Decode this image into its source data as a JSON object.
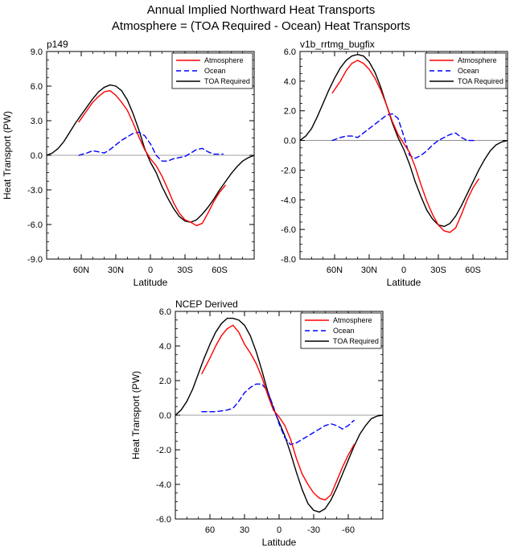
{
  "figure": {
    "title_line1": "Annual Implied Northward Heat Transports",
    "title_line2": "Atmosphere = (TOA Required - Ocean) Heat Transports"
  },
  "legend_labels": [
    "Atmosphere",
    "Ocean",
    "TOA Required"
  ],
  "colors": {
    "atmosphere": "#ff0000",
    "ocean": "#0000ff",
    "toa": "#000000",
    "zero_line": "#808080"
  },
  "chart_data": [
    {
      "type": "line",
      "title": "p149",
      "xlabel": "Latitude",
      "ylabel": "Heat Transport (PW)",
      "xlim": [
        90,
        -90
      ],
      "ylim": [
        -9,
        9
      ],
      "xticks": [
        60,
        30,
        0,
        -30,
        -60
      ],
      "xtick_labels": [
        "60N",
        "30N",
        "0",
        "30S",
        "60S"
      ],
      "yticks": [
        9,
        6,
        3,
        0,
        -3,
        -6,
        -9
      ],
      "ytick_labels": [
        "9.0",
        "6.0",
        "3.0",
        "0.0",
        "-3.0",
        "-6.0",
        "-9.0"
      ],
      "legend_position": "top-right",
      "series": [
        {
          "name": "Atmosphere",
          "style": "solid",
          "color_key": "atmosphere",
          "x": [
            62,
            55,
            50,
            45,
            40,
            35,
            30,
            25,
            20,
            15,
            10,
            5,
            0,
            -5,
            -10,
            -15,
            -20,
            -25,
            -30,
            -35,
            -40,
            -45,
            -50,
            -55,
            -60,
            -65
          ],
          "y": [
            2.9,
            3.9,
            4.6,
            5.1,
            5.5,
            5.6,
            5.2,
            4.6,
            3.9,
            2.8,
            1.6,
            0.5,
            -0.3,
            -0.9,
            -1.8,
            -2.9,
            -4.1,
            -5.0,
            -5.6,
            -5.8,
            -6.1,
            -5.9,
            -5.0,
            -4.0,
            -3.2,
            -2.6
          ]
        },
        {
          "name": "Ocean",
          "style": "dashed",
          "color_key": "ocean",
          "x": [
            62,
            55,
            50,
            45,
            40,
            35,
            30,
            25,
            20,
            15,
            10,
            5,
            0,
            -5,
            -10,
            -15,
            -20,
            -25,
            -30,
            -35,
            -40,
            -45,
            -50,
            -55,
            -60,
            -63
          ],
          "y": [
            0.0,
            0.2,
            0.4,
            0.3,
            0.2,
            0.5,
            0.9,
            1.3,
            1.6,
            1.9,
            2.0,
            1.7,
            1.0,
            0.0,
            -0.5,
            -0.5,
            -0.3,
            -0.2,
            -0.1,
            0.2,
            0.5,
            0.6,
            0.3,
            0.1,
            0.1,
            0.1
          ]
        },
        {
          "name": "TOA Required",
          "style": "solid",
          "color_key": "toa",
          "x": [
            90,
            85,
            80,
            75,
            70,
            65,
            60,
            55,
            50,
            45,
            40,
            35,
            30,
            25,
            20,
            15,
            10,
            5,
            0,
            -5,
            -10,
            -15,
            -20,
            -25,
            -30,
            -35,
            -40,
            -45,
            -50,
            -55,
            -60,
            -65,
            -70,
            -75,
            -80,
            -85,
            -90
          ],
          "y": [
            0.0,
            0.2,
            0.6,
            1.2,
            2.0,
            2.8,
            3.5,
            4.2,
            4.9,
            5.5,
            5.9,
            6.1,
            6.0,
            5.6,
            4.8,
            3.6,
            2.2,
            0.6,
            -0.6,
            -1.5,
            -2.7,
            -3.7,
            -4.6,
            -5.3,
            -5.7,
            -5.8,
            -5.6,
            -5.1,
            -4.5,
            -3.8,
            -3.0,
            -2.3,
            -1.6,
            -1.0,
            -0.5,
            -0.2,
            0.0
          ]
        }
      ]
    },
    {
      "type": "line",
      "title": "v1b_rrtmg_bugfix",
      "xlabel": "Latitude",
      "ylabel": "",
      "xlim": [
        90,
        -90
      ],
      "ylim": [
        -8,
        6
      ],
      "xticks": [
        60,
        30,
        0,
        -30,
        -60
      ],
      "xtick_labels": [
        "60N",
        "30N",
        "0",
        "30S",
        "60S"
      ],
      "yticks": [
        6,
        4,
        2,
        0,
        -2,
        -4,
        -6,
        -8
      ],
      "ytick_labels": [
        "6.0",
        "4.0",
        "2.0",
        "0.0",
        "-2.0",
        "-4.0",
        "-6.0",
        "-8.0"
      ],
      "legend_position": "top-right",
      "series": [
        {
          "name": "Atmosphere",
          "style": "solid",
          "color_key": "atmosphere",
          "x": [
            62,
            55,
            50,
            45,
            40,
            35,
            30,
            25,
            20,
            15,
            10,
            5,
            0,
            -5,
            -10,
            -15,
            -20,
            -25,
            -30,
            -35,
            -40,
            -45,
            -50,
            -55,
            -60,
            -65
          ],
          "y": [
            3.2,
            4.0,
            4.7,
            5.2,
            5.4,
            5.2,
            4.8,
            4.2,
            3.4,
            2.4,
            1.3,
            0.4,
            -0.2,
            -0.8,
            -1.8,
            -3.0,
            -4.1,
            -5.0,
            -5.7,
            -6.1,
            -6.2,
            -5.9,
            -5.0,
            -4.0,
            -3.2,
            -2.6
          ]
        },
        {
          "name": "Ocean",
          "style": "dashed",
          "color_key": "ocean",
          "x": [
            62,
            55,
            50,
            45,
            40,
            35,
            30,
            25,
            20,
            15,
            10,
            5,
            0,
            -5,
            -10,
            -15,
            -20,
            -25,
            -30,
            -35,
            -40,
            -45,
            -50,
            -55,
            -60,
            -63
          ],
          "y": [
            0.0,
            0.2,
            0.3,
            0.3,
            0.2,
            0.5,
            0.8,
            1.1,
            1.4,
            1.7,
            1.8,
            1.5,
            0.3,
            -1.0,
            -1.2,
            -1.0,
            -0.7,
            -0.3,
            0.0,
            0.2,
            0.4,
            0.5,
            0.2,
            0.0,
            0.0,
            0.0
          ]
        },
        {
          "name": "TOA Required",
          "style": "solid",
          "color_key": "toa",
          "x": [
            90,
            85,
            80,
            75,
            70,
            65,
            60,
            55,
            50,
            45,
            40,
            35,
            30,
            25,
            20,
            15,
            10,
            5,
            0,
            -5,
            -10,
            -15,
            -20,
            -25,
            -30,
            -35,
            -40,
            -45,
            -50,
            -55,
            -60,
            -65,
            -70,
            -75,
            -80,
            -85,
            -90
          ],
          "y": [
            0.0,
            0.3,
            0.8,
            1.6,
            2.5,
            3.4,
            4.2,
            4.9,
            5.4,
            5.7,
            5.8,
            5.7,
            5.3,
            4.6,
            3.6,
            2.4,
            1.2,
            0.2,
            -0.6,
            -1.6,
            -2.8,
            -3.8,
            -4.7,
            -5.3,
            -5.7,
            -5.8,
            -5.6,
            -5.1,
            -4.4,
            -3.6,
            -2.8,
            -2.0,
            -1.3,
            -0.7,
            -0.3,
            -0.1,
            0.0
          ]
        }
      ]
    },
    {
      "type": "line",
      "title": "NCEP Derived",
      "xlabel": "Latitude",
      "ylabel": "Heat Transport (PW)",
      "xlim": [
        90,
        -90
      ],
      "ylim": [
        -6,
        6
      ],
      "xticks": [
        60,
        30,
        0,
        -30,
        -60
      ],
      "xtick_labels": [
        "60",
        "30",
        "0",
        "-30",
        "-60"
      ],
      "yticks": [
        6,
        4,
        2,
        0,
        -2,
        -4,
        -6
      ],
      "ytick_labels": [
        "6.0",
        "4.0",
        "2.0",
        "0.0",
        "-2.0",
        "-4.0",
        "-6.0"
      ],
      "legend_position": "top-right",
      "series": [
        {
          "name": "Atmosphere",
          "style": "solid",
          "color_key": "atmosphere",
          "x": [
            67,
            60,
            55,
            50,
            45,
            40,
            35,
            30,
            25,
            20,
            15,
            10,
            5,
            0,
            -5,
            -10,
            -15,
            -20,
            -25,
            -30,
            -35,
            -40,
            -45,
            -50,
            -55,
            -60,
            -65
          ],
          "y": [
            2.4,
            3.3,
            4.0,
            4.6,
            5.0,
            5.2,
            4.8,
            4.1,
            3.6,
            3.0,
            2.2,
            1.2,
            0.3,
            -0.1,
            -0.6,
            -1.4,
            -2.5,
            -3.4,
            -4.0,
            -4.5,
            -4.8,
            -4.9,
            -4.6,
            -3.8,
            -3.0,
            -2.3,
            -1.7
          ]
        },
        {
          "name": "Ocean",
          "style": "dashed",
          "color_key": "ocean",
          "x": [
            67,
            60,
            55,
            50,
            45,
            40,
            35,
            30,
            25,
            20,
            15,
            10,
            5,
            0,
            -5,
            -10,
            -15,
            -20,
            -25,
            -30,
            -35,
            -40,
            -45,
            -50,
            -55,
            -60,
            -65
          ],
          "y": [
            0.2,
            0.2,
            0.2,
            0.25,
            0.3,
            0.4,
            0.8,
            1.3,
            1.6,
            1.8,
            1.8,
            1.4,
            0.5,
            -0.5,
            -1.3,
            -1.7,
            -1.6,
            -1.4,
            -1.2,
            -1.0,
            -0.8,
            -0.6,
            -0.5,
            -0.6,
            -0.8,
            -0.6,
            -0.3
          ]
        },
        {
          "name": "TOA Required",
          "style": "solid",
          "color_key": "toa",
          "x": [
            90,
            85,
            80,
            75,
            70,
            65,
            60,
            55,
            50,
            45,
            40,
            35,
            30,
            25,
            20,
            15,
            10,
            5,
            0,
            -5,
            -10,
            -15,
            -20,
            -25,
            -30,
            -35,
            -40,
            -45,
            -50,
            -55,
            -60,
            -65,
            -70,
            -75,
            -80,
            -85,
            -90
          ],
          "y": [
            0.0,
            0.3,
            0.8,
            1.5,
            2.4,
            3.3,
            4.1,
            4.8,
            5.3,
            5.6,
            5.6,
            5.5,
            5.2,
            4.6,
            3.7,
            2.6,
            1.4,
            0.4,
            -0.4,
            -1.2,
            -2.2,
            -3.3,
            -4.3,
            -5.1,
            -5.5,
            -5.6,
            -5.4,
            -4.9,
            -4.2,
            -3.4,
            -2.6,
            -1.8,
            -1.1,
            -0.6,
            -0.2,
            -0.05,
            0.0
          ]
        }
      ]
    }
  ]
}
